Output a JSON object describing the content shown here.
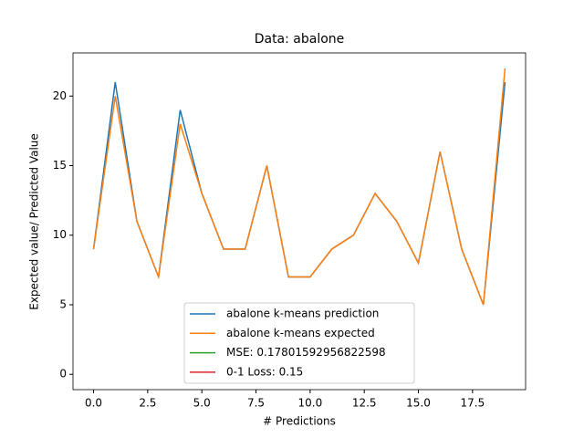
{
  "chart_data": {
    "type": "line",
    "title": "Data: abalone",
    "xlabel": "# Predictions",
    "ylabel": "Expected value/ Predicted Value",
    "x": [
      0,
      1,
      2,
      3,
      4,
      5,
      6,
      7,
      8,
      9,
      10,
      11,
      12,
      13,
      14,
      15,
      16,
      17,
      18,
      19
    ],
    "series": [
      {
        "name": "abalone k-means prediction",
        "color": "#1f77b4",
        "values": [
          9,
          21,
          11,
          7,
          19,
          13,
          9,
          9,
          15,
          7,
          7,
          9,
          10,
          13,
          11,
          8,
          16,
          9,
          5,
          21
        ]
      },
      {
        "name": "abalone k-means expected",
        "color": "#ff7f0e",
        "values": [
          9,
          20,
          11,
          7,
          18,
          13,
          9,
          9,
          15,
          7,
          7,
          9,
          10,
          13,
          11,
          8,
          16,
          9,
          5,
          22
        ]
      },
      {
        "name": "MSE: 0.17801592956822598",
        "color": "#2ca02c",
        "values": [
          null,
          null,
          null,
          null,
          null,
          null,
          null,
          null,
          null,
          null,
          null,
          null,
          null,
          null,
          null,
          null,
          null,
          null,
          null,
          null
        ]
      },
      {
        "name": "0-1 Loss: 0.15",
        "color": "#d62728",
        "values": [
          null,
          null,
          null,
          null,
          null,
          null,
          null,
          null,
          null,
          null,
          null,
          null,
          null,
          null,
          null,
          null,
          null,
          null,
          null,
          null
        ]
      }
    ],
    "xlim": [
      -0.95,
      19.95
    ],
    "xticks": [
      {
        "value": 0,
        "label": "0.0"
      },
      {
        "value": 2.5,
        "label": "2.5"
      },
      {
        "value": 5,
        "label": "5.0"
      },
      {
        "value": 7.5,
        "label": "7.5"
      },
      {
        "value": 10,
        "label": "10.0"
      },
      {
        "value": 12.5,
        "label": "12.5"
      },
      {
        "value": 15,
        "label": "15.0"
      },
      {
        "value": 17.5,
        "label": "17.5"
      }
    ],
    "ylim": [
      -1.1,
      23.1
    ],
    "yticks": [
      0,
      5,
      10,
      15,
      20
    ],
    "grid": false,
    "legend": "lower center"
  }
}
